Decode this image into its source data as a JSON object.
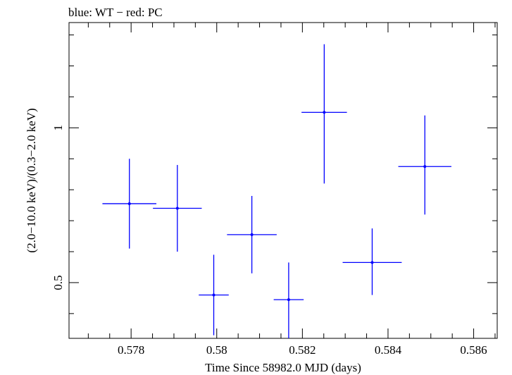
{
  "chart_data": {
    "type": "scatter",
    "title": "blue: WT − red: PC",
    "xlabel": "Time Since 58982.0 MJD (days)",
    "ylabel": "(2.0−10.0 keV)/(0.3−2.0 keV)",
    "xlim": [
      0.57655,
      0.58655
    ],
    "ylim": [
      0.32,
      1.34
    ],
    "x_ticks": [
      0.578,
      0.58,
      0.582,
      0.584,
      0.586
    ],
    "x_tick_labels": [
      "0.578",
      "0.58",
      "0.582",
      "0.584",
      "0.586"
    ],
    "y_ticks": [
      0.5,
      1
    ],
    "y_tick_labels": [
      "0.5",
      "1"
    ],
    "grid": false,
    "series": [
      {
        "name": "WT",
        "color": "#0000ff",
        "points": [
          {
            "x": 0.57796,
            "y": 0.755,
            "xerr": 0.00063,
            "ylo": 0.61,
            "yhi": 0.9
          },
          {
            "x": 0.57908,
            "y": 0.74,
            "xerr": 0.00057,
            "ylo": 0.6,
            "yhi": 0.88
          },
          {
            "x": 0.57993,
            "y": 0.46,
            "xerr": 0.00035,
            "ylo": 0.33,
            "yhi": 0.59
          },
          {
            "x": 0.58082,
            "y": 0.655,
            "xerr": 0.00058,
            "ylo": 0.53,
            "yhi": 0.78
          },
          {
            "x": 0.58168,
            "y": 0.445,
            "xerr": 0.00035,
            "ylo": 0.32,
            "yhi": 0.565
          },
          {
            "x": 0.58251,
            "y": 1.05,
            "xerr": 0.00053,
            "ylo": 0.82,
            "yhi": 1.27
          },
          {
            "x": 0.58363,
            "y": 0.565,
            "xerr": 0.00069,
            "ylo": 0.46,
            "yhi": 0.675
          },
          {
            "x": 0.58486,
            "y": 0.875,
            "xerr": 0.00062,
            "ylo": 0.72,
            "yhi": 1.04
          }
        ]
      }
    ]
  }
}
